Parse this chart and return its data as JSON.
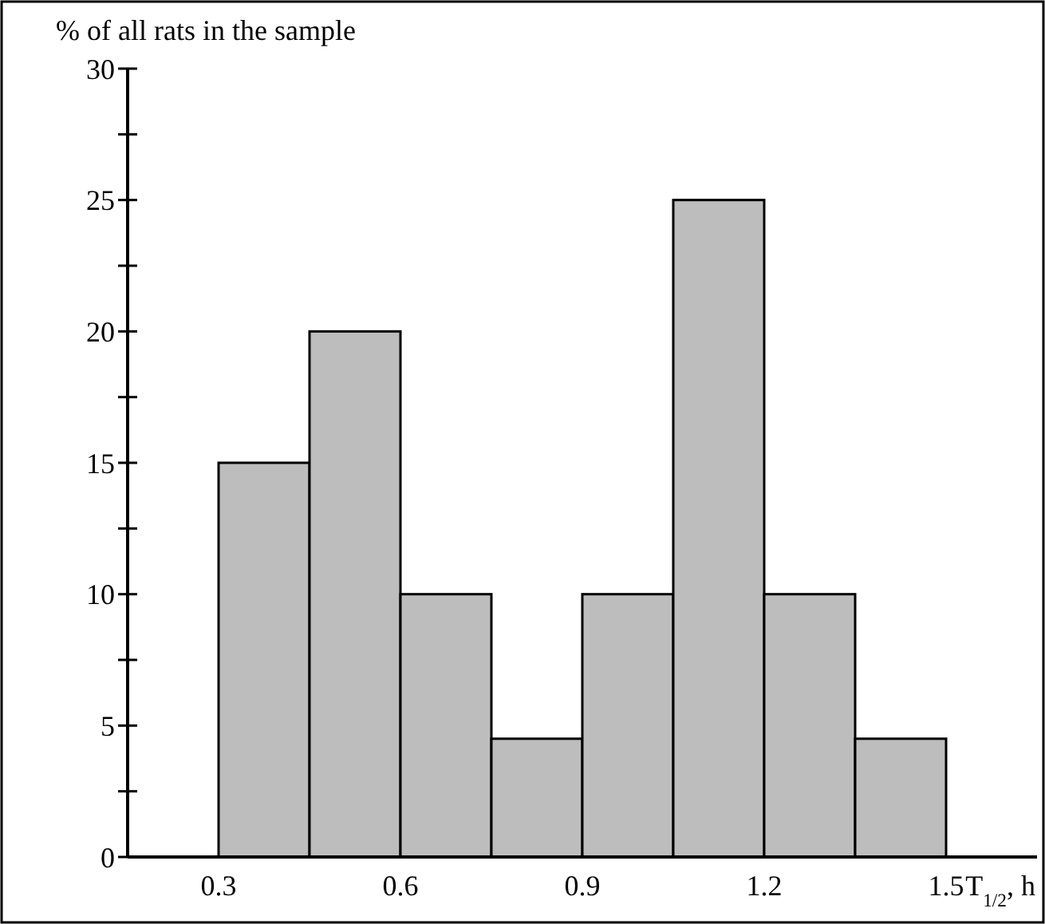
{
  "chart_data": {
    "type": "histogram",
    "ylabel": "% of all rats in the sample",
    "xlabel": "T$_{1/2}$, h",
    "bins": [
      0.3,
      0.45,
      0.6,
      0.75,
      0.9,
      1.05,
      1.2,
      1.35,
      1.5
    ],
    "values": [
      15,
      20,
      10,
      4.5,
      10,
      25,
      10,
      4.5
    ],
    "color": "#bdbdbd",
    "xlim": [
      0.15,
      1.65
    ],
    "xticks": [
      0.3,
      0.6,
      0.9,
      1.2,
      1.5
    ],
    "ylim": [
      0,
      30
    ],
    "yticks": [
      0,
      {
        "value": 2.5,
        "label": null
      },
      5,
      {
        "value": 7.5,
        "label": null
      },
      10,
      {
        "value": 12.5,
        "label": null
      },
      15,
      {
        "value": 17.5,
        "label": null
      },
      20,
      {
        "value": 22.5,
        "label": null
      },
      25,
      {
        "value": 27.5,
        "label": null
      },
      30
    ]
  }
}
